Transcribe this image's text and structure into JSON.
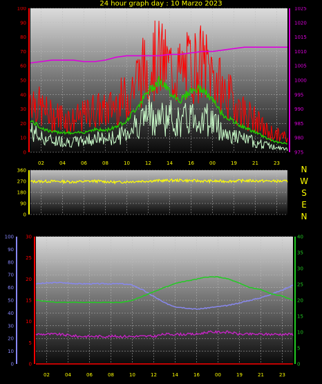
{
  "title": "24 hour graph day : 10 Marzo 2023",
  "colors": {
    "background": "#000000",
    "wind_gust": "#ff0000",
    "wind_avg": "#22cc00",
    "wind_min": "#ccffcc",
    "pressure": "#dd00dd",
    "direction": "#ffff00",
    "humidity": "#8888ee",
    "temperature": "#22cc22",
    "dewpoint": "#cc22cc",
    "rain": "#ff0000",
    "axis_red": "#ff0000",
    "axis_magenta": "#dd00dd",
    "axis_yellow": "#ffff00",
    "axis_blue": "#8888ff",
    "axis_green": "#22cc22"
  },
  "time_ticks": [
    "02",
    "04",
    "06",
    "08",
    "10",
    "12",
    "14",
    "16",
    "00",
    "19",
    "21",
    "23"
  ],
  "compass": [
    "N",
    "W",
    "S",
    "E",
    "N"
  ],
  "chart_data": [
    {
      "type": "line",
      "name": "wind-and-pressure",
      "y_ticks_left": [
        "100",
        "90",
        "80",
        "70",
        "60",
        "50",
        "40",
        "30",
        "20",
        "10",
        "0"
      ],
      "ylim_left": [
        0,
        100
      ],
      "y_ticks_right": [
        "1025",
        "1020",
        "1015",
        "1010",
        "1005",
        "1000",
        "995",
        "990",
        "985",
        "980",
        "975"
      ],
      "ylim_right": [
        975,
        1025
      ],
      "x_hours": [
        0,
        1,
        2,
        3,
        4,
        5,
        6,
        7,
        8,
        9,
        10,
        11,
        12,
        13,
        14,
        15,
        16,
        17,
        18,
        19,
        20,
        21,
        22,
        23,
        24
      ],
      "gust": [
        40,
        30,
        25,
        25,
        22,
        25,
        30,
        28,
        34,
        38,
        52,
        60,
        65,
        58,
        55,
        60,
        62,
        55,
        42,
        35,
        28,
        22,
        15,
        12,
        10
      ],
      "average": [
        22,
        17,
        14,
        14,
        13,
        14,
        16,
        15,
        18,
        22,
        32,
        42,
        50,
        42,
        36,
        43,
        44,
        36,
        26,
        21,
        17,
        14,
        10,
        7,
        6
      ],
      "minimum": [
        15,
        10,
        8,
        8,
        7,
        8,
        10,
        9,
        10,
        14,
        20,
        26,
        24,
        24,
        20,
        25,
        24,
        22,
        14,
        11,
        9,
        7,
        5,
        3,
        2
      ],
      "pressure": [
        1006,
        1006.5,
        1007,
        1007,
        1007,
        1006.5,
        1006.5,
        1007,
        1008,
        1008.5,
        1008.5,
        1008.5,
        1008.5,
        1009,
        1009,
        1009.5,
        1010,
        1010,
        1010.5,
        1011,
        1011.5,
        1011.5,
        1011.5,
        1011.5,
        1011.5
      ]
    },
    {
      "type": "line",
      "name": "wind-direction",
      "y_ticks": [
        "360",
        "270",
        "180",
        "90",
        "0"
      ],
      "ylim": [
        0,
        360
      ],
      "x_hours": [
        0,
        2,
        4,
        6,
        8,
        10,
        12,
        14,
        16,
        18,
        20,
        22,
        24
      ],
      "direction": [
        268,
        270,
        265,
        272,
        262,
        270,
        275,
        278,
        272,
        270,
        275,
        272,
        270
      ]
    },
    {
      "type": "line",
      "name": "temperature-humidity",
      "y_ticks_humidity": [
        "100",
        "90",
        "80",
        "70",
        "60",
        "50",
        "40",
        "30",
        "20",
        "10",
        "0"
      ],
      "ylim_humidity": [
        0,
        100
      ],
      "y_ticks_temperature": [
        "30",
        "25",
        "20",
        "15",
        "10",
        "5",
        "0"
      ],
      "ylim_temperature": [
        0,
        30
      ],
      "y_ticks_right": [
        "40",
        "35",
        "30",
        "25",
        "20",
        "15",
        "10",
        "5",
        "0"
      ],
      "ylim_right": [
        0,
        40
      ],
      "x_hours": [
        0,
        2,
        4,
        6,
        8,
        9,
        10,
        11,
        12,
        13,
        14,
        15,
        16,
        17,
        18,
        19,
        20,
        21,
        22,
        23,
        24
      ],
      "humidity": [
        63,
        64,
        63,
        63,
        63,
        62,
        58,
        53,
        48,
        45,
        44,
        43,
        44,
        45,
        46,
        48,
        50,
        52,
        55,
        58,
        62
      ],
      "temperature": [
        15,
        14.5,
        14.5,
        14.5,
        14.5,
        15,
        16,
        17,
        18,
        19,
        19.5,
        20,
        20.5,
        20.5,
        20,
        19,
        18,
        17.5,
        16.5,
        16,
        15
      ],
      "dewpoint": [
        7,
        7,
        6.5,
        6.5,
        6.5,
        6.5,
        6.5,
        6.5,
        7,
        7,
        7,
        7,
        7.5,
        7.5,
        7.5,
        7,
        7,
        7,
        7,
        7,
        7
      ],
      "rain": [
        0,
        0,
        0,
        0,
        0,
        0,
        0,
        0,
        0,
        0,
        0,
        0,
        0,
        0,
        0,
        0,
        0,
        0,
        0,
        0,
        0
      ]
    }
  ]
}
